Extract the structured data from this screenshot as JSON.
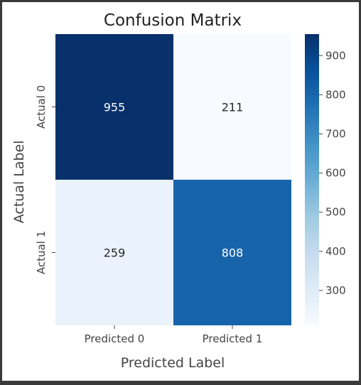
{
  "chart_data": {
    "type": "heatmap",
    "title": "Confusion Matrix",
    "xlabel": "Predicted Label",
    "ylabel": "Actual Label",
    "x_categories": [
      "Predicted 0",
      "Predicted 1"
    ],
    "y_categories": [
      "Actual 0",
      "Actual 1"
    ],
    "values": [
      [
        955,
        211
      ],
      [
        259,
        808
      ]
    ],
    "colormap": "Blues",
    "colorbar": {
      "min": 211,
      "max": 955,
      "ticks": [
        300,
        400,
        500,
        600,
        700,
        800,
        900
      ]
    },
    "colors": {
      "low": "#f7fbff",
      "high": "#08306b"
    }
  }
}
